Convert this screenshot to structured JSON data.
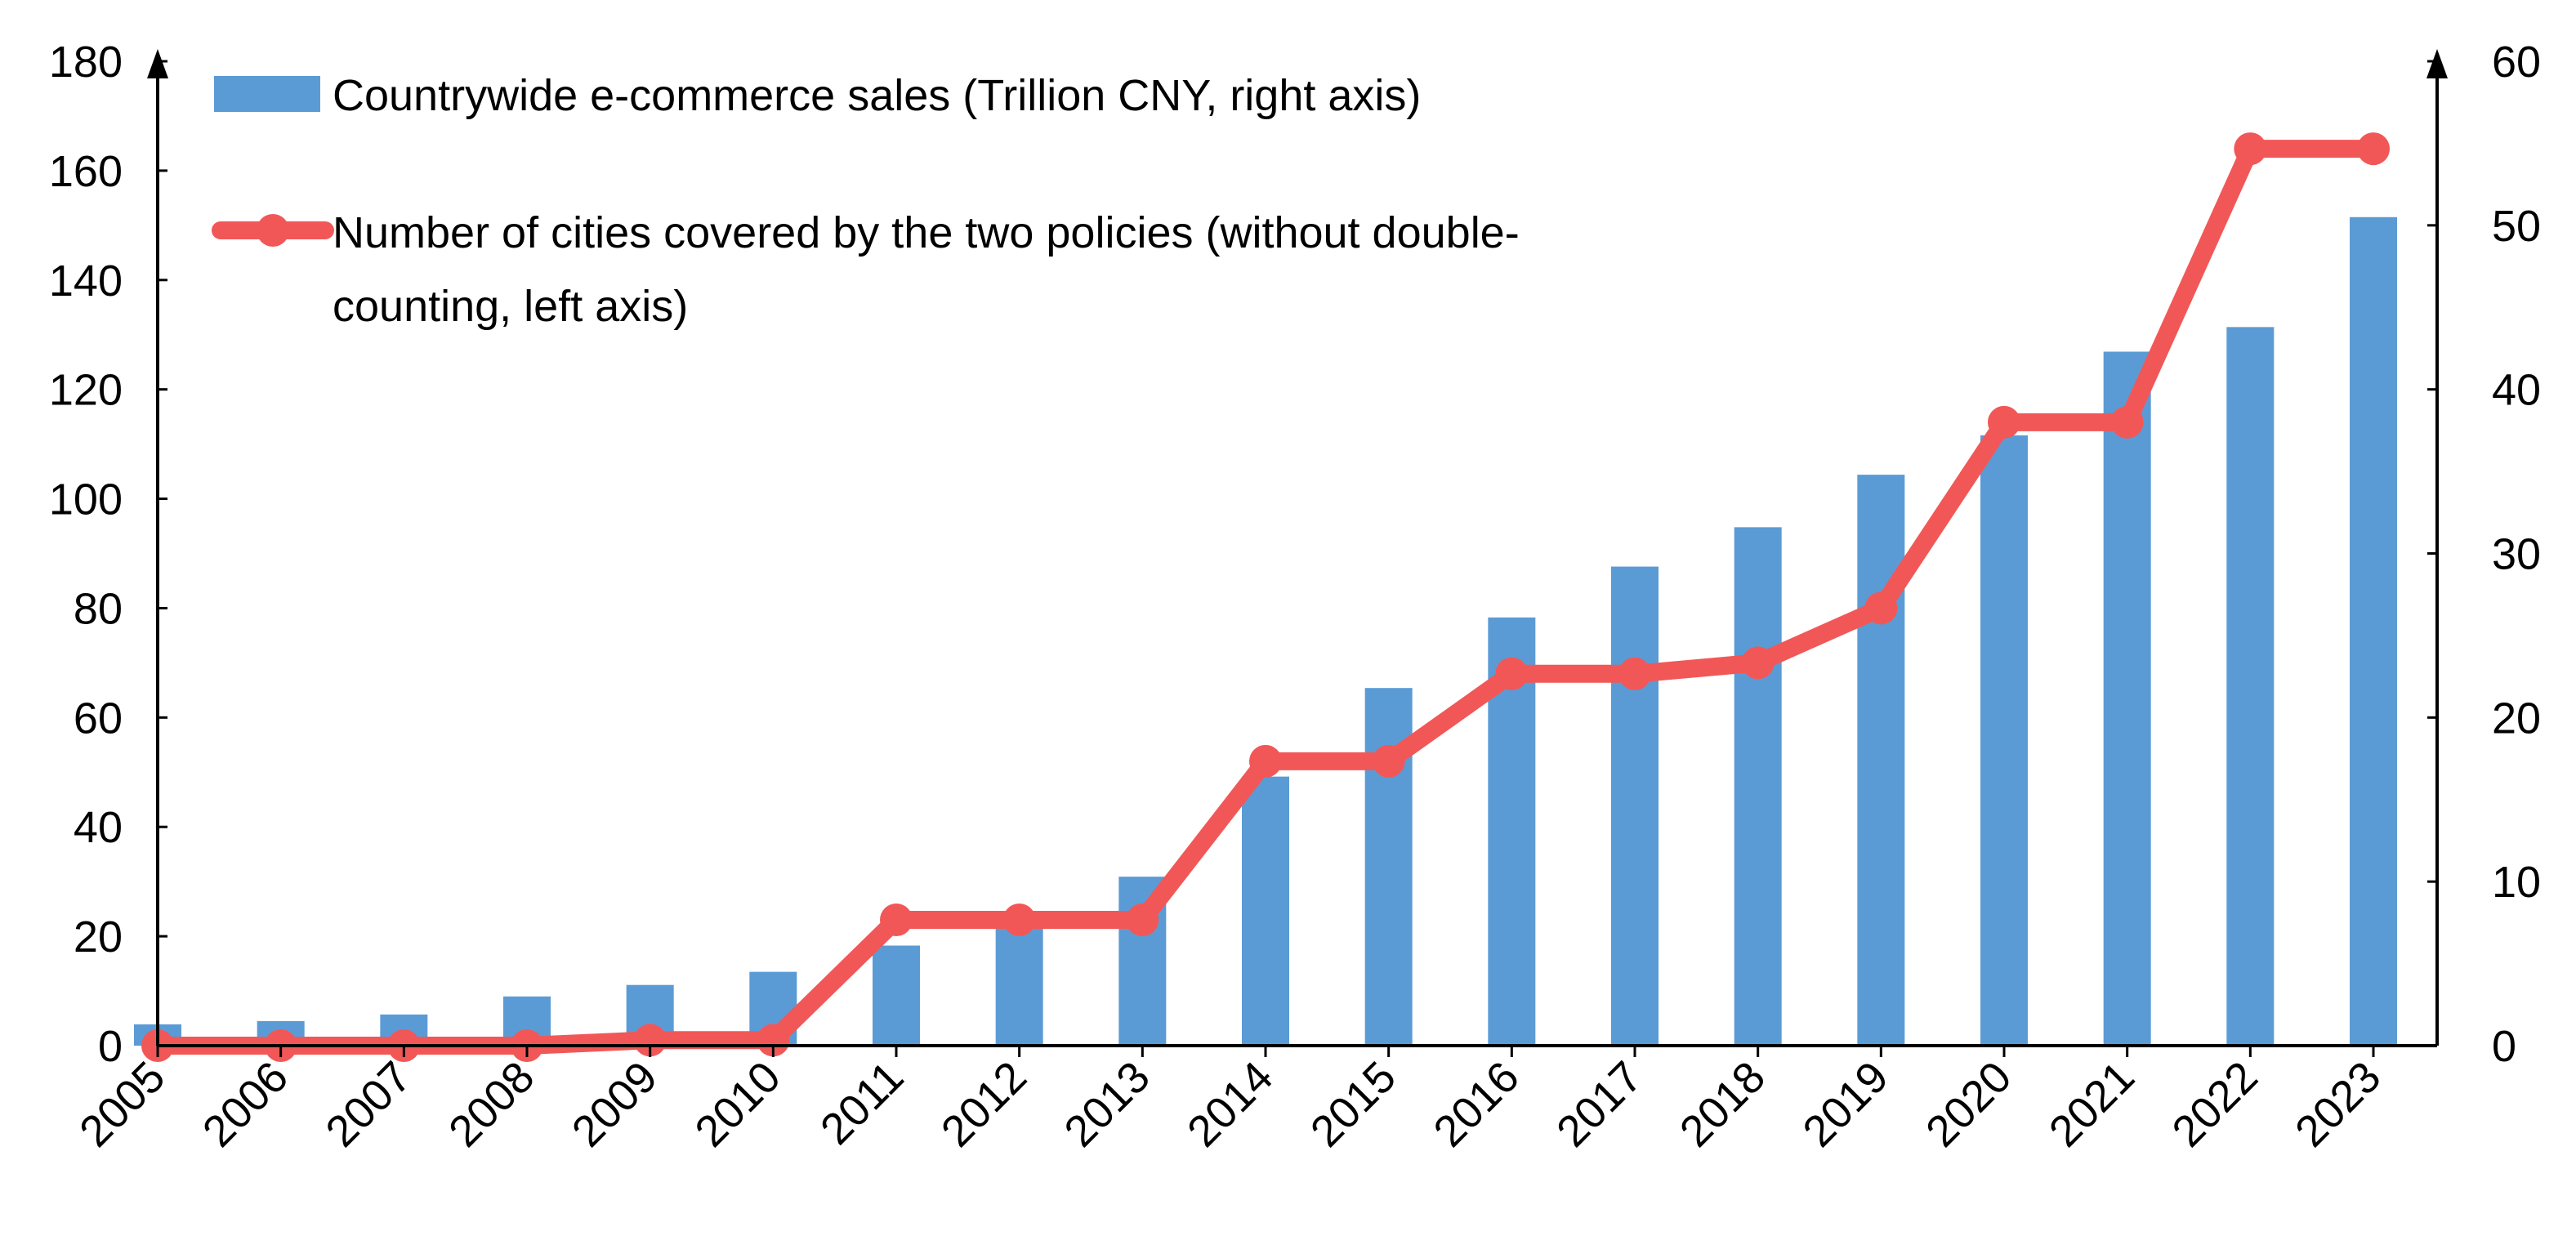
{
  "chart_data": {
    "type": "bar",
    "title": "",
    "categories": [
      "2005",
      "2006",
      "2007",
      "2008",
      "2009",
      "2010",
      "2011",
      "2012",
      "2013",
      "2014",
      "2015",
      "2016",
      "2017",
      "2018",
      "2019",
      "2020",
      "2021",
      "2022",
      "2023"
    ],
    "series": [
      {
        "name": "Countrywide e-commerce sales (Trillion CNY, right axis)",
        "type": "bar",
        "axis": "right",
        "color": "#5b9bd5",
        "values": [
          1.3,
          1.5,
          1.9,
          3.0,
          3.7,
          4.5,
          6.1,
          8.1,
          10.3,
          16.4,
          21.8,
          26.1,
          29.2,
          31.6,
          34.8,
          37.2,
          42.3,
          43.8,
          50.5
        ]
      },
      {
        "name": "Number of cities covered by the two policies (without double-counting, left axis)",
        "type": "line",
        "axis": "left",
        "color": "#f25757",
        "marker": "circle",
        "values": [
          0,
          0,
          0,
          0,
          1,
          1,
          23,
          23,
          23,
          52,
          52,
          68,
          68,
          70,
          80,
          114,
          114,
          164,
          164
        ]
      }
    ],
    "left_axis": {
      "min": 0,
      "max": 180,
      "ticks": [
        "0",
        "20",
        "40",
        "60",
        "80",
        "100",
        "120",
        "140",
        "160",
        "180"
      ]
    },
    "right_axis": {
      "min": 0,
      "max": 60,
      "ticks": [
        "0",
        "10",
        "20",
        "30",
        "40",
        "50",
        "60"
      ]
    },
    "legend": {
      "placement": "top-left",
      "bar_label": "Countrywide e-commerce sales (Trillion CNY, right axis)",
      "line_label_1": "Number of cities covered by the two policies (without double-",
      "line_label_2": "counting, left axis)"
    },
    "grid": false
  }
}
